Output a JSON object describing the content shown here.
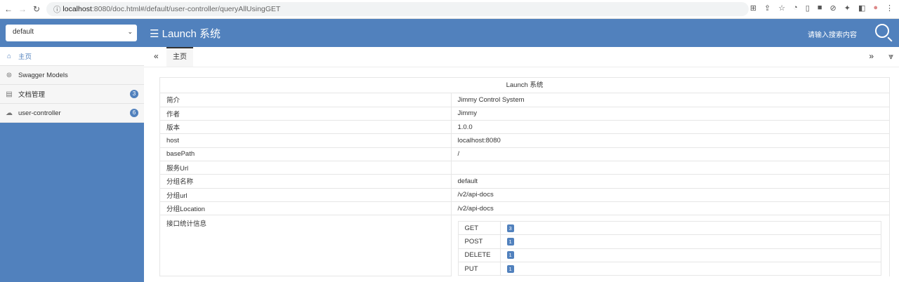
{
  "browser": {
    "url_host": "localhost",
    "url_rest": ":8080/doc.html#/default/user-controller/queryAllUsingGET"
  },
  "header": {
    "group_select": "default",
    "title": "☰ Launch 系统",
    "search_placeholder": "请输入搜索内容"
  },
  "sidebar": {
    "items": [
      {
        "label": "主页",
        "icon": "home-icon",
        "badge": null
      },
      {
        "label": "Swagger Models",
        "icon": "models-icon",
        "badge": null
      },
      {
        "label": "文档管理",
        "icon": "document-icon",
        "badge": "3"
      },
      {
        "label": "user-controller",
        "icon": "cloud-icon",
        "badge": "6"
      }
    ]
  },
  "tabs": {
    "items": [
      {
        "label": "主页"
      }
    ]
  },
  "main": {
    "caption": "Launch 系统",
    "rows": [
      {
        "key": "简介",
        "value": "Jimmy Control System"
      },
      {
        "key": "作者",
        "value": "Jimmy"
      },
      {
        "key": "版本",
        "value": "1.0.0"
      },
      {
        "key": "host",
        "value": "localhost:8080"
      },
      {
        "key": "basePath",
        "value": "/"
      },
      {
        "key": "服务Url",
        "value": ""
      },
      {
        "key": "分组名称",
        "value": "default"
      },
      {
        "key": "分组url",
        "value": "/v2/api-docs"
      },
      {
        "key": "分组Location",
        "value": "/v2/api-docs"
      }
    ],
    "stats_label": "接口统计信息",
    "stats": [
      {
        "method": "GET",
        "count": "3"
      },
      {
        "method": "POST",
        "count": "1"
      },
      {
        "method": "DELETE",
        "count": "1"
      },
      {
        "method": "PUT",
        "count": "1"
      }
    ]
  },
  "colors": {
    "brand": "#5181bd"
  }
}
